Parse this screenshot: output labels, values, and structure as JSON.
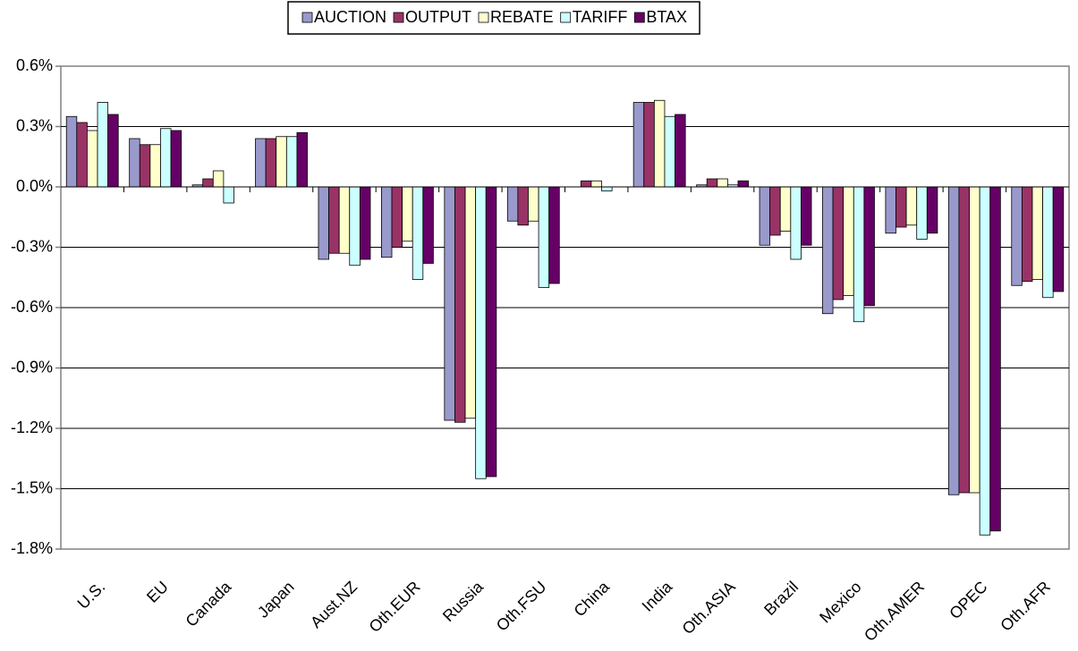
{
  "chart_data": {
    "type": "bar",
    "categories": [
      "U.S.",
      "EU",
      "Canada",
      "Japan",
      "Aust.NZ",
      "Oth.EUR",
      "Russia",
      "Oth.FSU",
      "China",
      "India",
      "Oth.ASIA",
      "Brazil",
      "Mexico",
      "Oth.AMER",
      "OPEC",
      "Oth.AFR"
    ],
    "series": [
      {
        "name": "AUCTION",
        "color": "#9999cc",
        "values": [
          0.35,
          0.24,
          0.01,
          0.24,
          -0.36,
          -0.35,
          -1.16,
          -0.17,
          0.0,
          0.42,
          0.01,
          -0.29,
          -0.63,
          -0.23,
          -1.53,
          -0.49
        ]
      },
      {
        "name": "OUTPUT",
        "color": "#993366",
        "values": [
          0.32,
          0.21,
          0.04,
          0.24,
          -0.33,
          -0.3,
          -1.17,
          -0.19,
          0.03,
          0.42,
          0.04,
          -0.24,
          -0.56,
          -0.2,
          -1.52,
          -0.47
        ]
      },
      {
        "name": "REBATE",
        "color": "#ffffcc",
        "values": [
          0.28,
          0.21,
          0.08,
          0.25,
          -0.33,
          -0.27,
          -1.15,
          -0.17,
          0.03,
          0.43,
          0.04,
          -0.22,
          -0.54,
          -0.19,
          -1.52,
          -0.46
        ]
      },
      {
        "name": "TARIFF",
        "color": "#ccffff",
        "values": [
          0.42,
          0.29,
          -0.08,
          0.25,
          -0.39,
          -0.46,
          -1.45,
          -0.5,
          -0.02,
          0.35,
          0.01,
          -0.36,
          -0.67,
          -0.26,
          -1.73,
          -0.55
        ]
      },
      {
        "name": "BTAX",
        "color": "#660066",
        "values": [
          0.36,
          0.28,
          0.0,
          0.27,
          -0.36,
          -0.38,
          -1.44,
          -0.48,
          0.0,
          0.36,
          0.03,
          -0.29,
          -0.59,
          -0.23,
          -1.71,
          -0.52
        ]
      }
    ],
    "ylim": [
      -1.8,
      0.6
    ],
    "yticks": [
      {
        "value": -1.8,
        "label": "-1.8%"
      },
      {
        "value": -1.5,
        "label": "-1.5%"
      },
      {
        "value": -1.2,
        "label": "-1.2%"
      },
      {
        "value": -0.9,
        "label": "-0.9%"
      },
      {
        "value": -0.6,
        "label": "-0.6%"
      },
      {
        "value": -0.3,
        "label": "-0.3%"
      },
      {
        "value": 0,
        "label": "0.0%"
      },
      {
        "value": 0.3,
        "label": "0.3%"
      },
      {
        "value": 0.6,
        "label": "0.6%"
      }
    ],
    "grid": true,
    "legend": "top"
  }
}
